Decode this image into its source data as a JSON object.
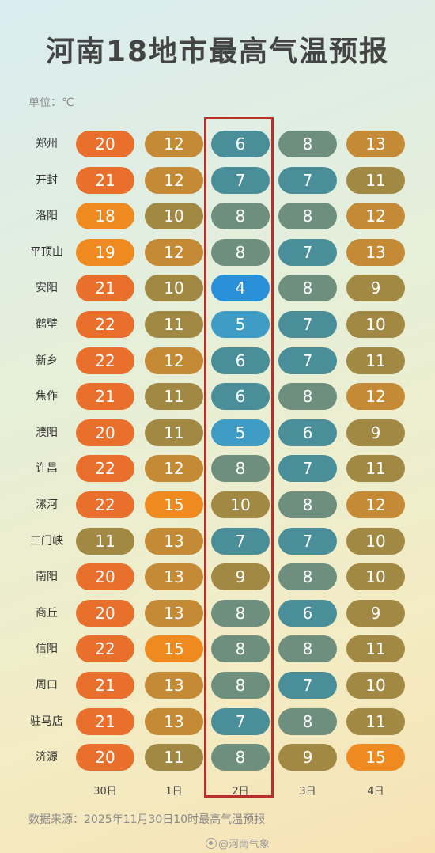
{
  "title": "河南18地市最高气温预报",
  "unit": "单位：℃",
  "source": "数据来源：2025年11月30日10时最高气温预报",
  "watermark": "@河南气象",
  "colors": {
    "red_orange": "#e86f2c",
    "orange": "#ee8a20",
    "gold": "#c48a35",
    "olive": "#a18944",
    "green_grey": "#6f8f7e",
    "teal": "#4a8e9a",
    "blue": "#3f9cc4",
    "bright_blue": "#2a90d8",
    "highlight_border": "#b7312a"
  },
  "chart_data": {
    "type": "table",
    "title": "河南18地市最高气温预报",
    "unit": "℃",
    "columns": [
      "30日",
      "1日",
      "2日",
      "3日",
      "4日"
    ],
    "highlighted_column": "2日",
    "rows": [
      {
        "city": "郑州",
        "values": [
          20,
          12,
          6,
          8,
          13
        ]
      },
      {
        "city": "开封",
        "values": [
          21,
          12,
          7,
          7,
          11
        ]
      },
      {
        "city": "洛阳",
        "values": [
          18,
          10,
          8,
          8,
          12
        ]
      },
      {
        "city": "平顶山",
        "values": [
          19,
          12,
          8,
          7,
          13
        ]
      },
      {
        "city": "安阳",
        "values": [
          21,
          10,
          4,
          8,
          9
        ]
      },
      {
        "city": "鹤壁",
        "values": [
          22,
          11,
          5,
          7,
          10
        ]
      },
      {
        "city": "新乡",
        "values": [
          22,
          12,
          6,
          7,
          11
        ]
      },
      {
        "city": "焦作",
        "values": [
          21,
          11,
          6,
          8,
          12
        ]
      },
      {
        "city": "濮阳",
        "values": [
          20,
          11,
          5,
          6,
          9
        ]
      },
      {
        "city": "许昌",
        "values": [
          22,
          12,
          8,
          7,
          11
        ]
      },
      {
        "city": "漯河",
        "values": [
          22,
          15,
          10,
          8,
          12
        ]
      },
      {
        "city": "三门峡",
        "values": [
          11,
          13,
          7,
          7,
          10
        ]
      },
      {
        "city": "南阳",
        "values": [
          20,
          13,
          9,
          8,
          10
        ]
      },
      {
        "city": "商丘",
        "values": [
          20,
          13,
          8,
          6,
          9
        ]
      },
      {
        "city": "信阳",
        "values": [
          22,
          15,
          8,
          8,
          11
        ]
      },
      {
        "city": "周口",
        "values": [
          21,
          13,
          8,
          7,
          10
        ]
      },
      {
        "city": "驻马店",
        "values": [
          21,
          13,
          7,
          8,
          11
        ]
      },
      {
        "city": "济源",
        "values": [
          20,
          11,
          8,
          9,
          15
        ]
      }
    ]
  }
}
